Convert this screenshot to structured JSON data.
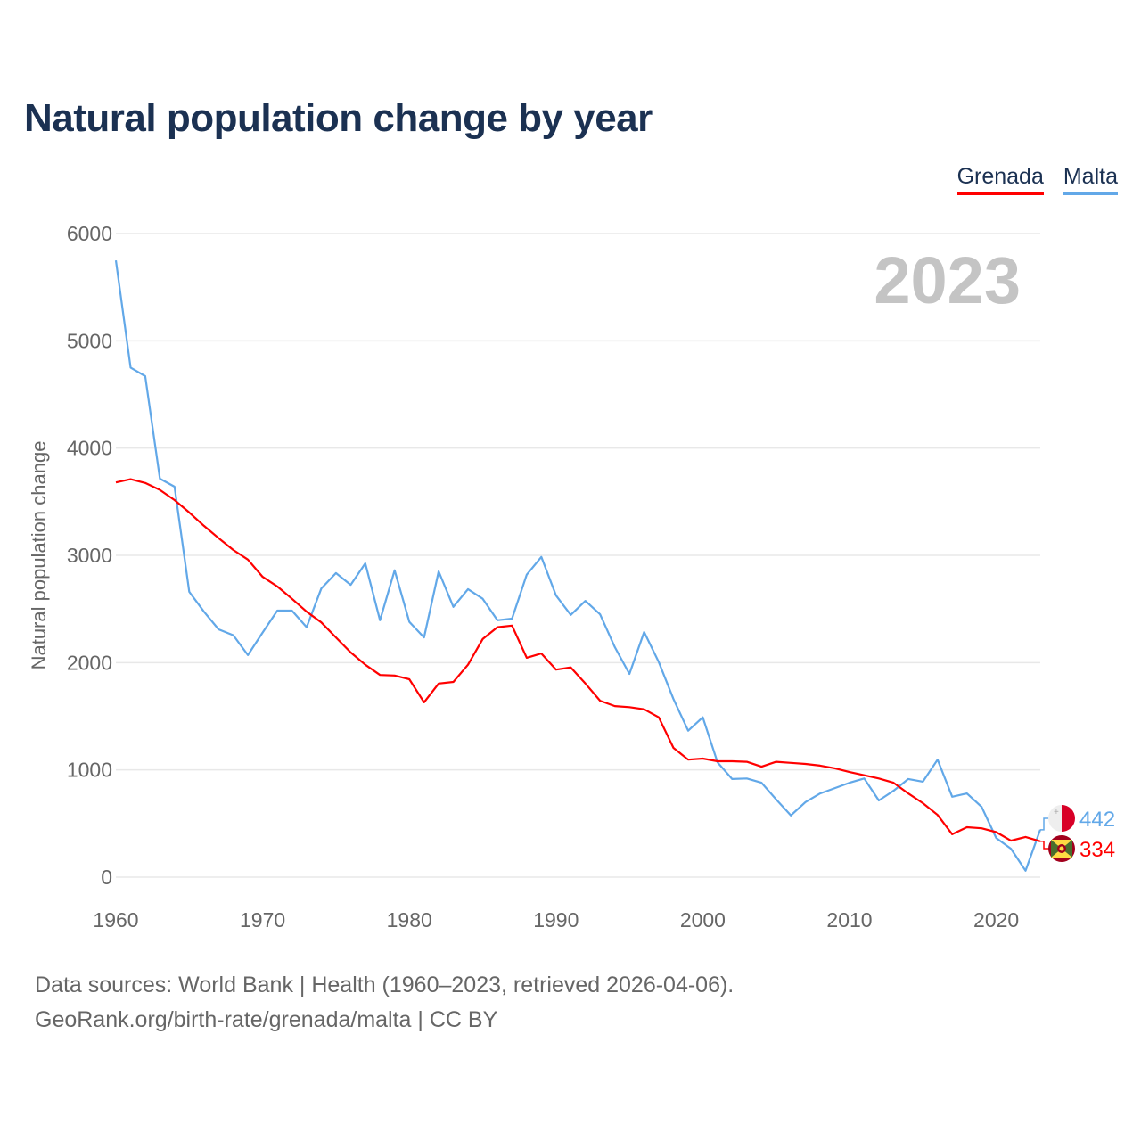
{
  "chart_data": {
    "type": "line",
    "title": "Natural population change by year",
    "xlabel": "",
    "ylabel": "Natural population change",
    "xlim": [
      1960,
      2023
    ],
    "ylim": [
      0,
      6000
    ],
    "yticks": [
      0,
      1000,
      2000,
      3000,
      4000,
      5000,
      6000
    ],
    "xticks": [
      1960,
      1970,
      1980,
      1990,
      2000,
      2010,
      2020
    ],
    "grid": true,
    "legend_position": "top-right",
    "current_year_label": "2023",
    "x": [
      1960,
      1961,
      1962,
      1963,
      1964,
      1965,
      1966,
      1967,
      1968,
      1969,
      1970,
      1971,
      1972,
      1973,
      1974,
      1975,
      1976,
      1977,
      1978,
      1979,
      1980,
      1981,
      1982,
      1983,
      1984,
      1985,
      1986,
      1987,
      1988,
      1989,
      1990,
      1991,
      1992,
      1993,
      1994,
      1995,
      1996,
      1997,
      1998,
      1999,
      2000,
      2001,
      2002,
      2003,
      2004,
      2005,
      2006,
      2007,
      2008,
      2009,
      2010,
      2011,
      2012,
      2013,
      2014,
      2015,
      2016,
      2017,
      2018,
      2019,
      2020,
      2021,
      2022,
      2023
    ],
    "series": [
      {
        "name": "Grenada",
        "color": "#ff0000",
        "end_label": "334",
        "values": [
          3680,
          3710,
          3675,
          3610,
          3515,
          3400,
          3275,
          3160,
          3050,
          2960,
          2800,
          2710,
          2595,
          2475,
          2375,
          2235,
          2095,
          1980,
          1885,
          1880,
          1845,
          1630,
          1805,
          1820,
          1980,
          2220,
          2330,
          2345,
          2045,
          2085,
          1935,
          1955,
          1805,
          1645,
          1595,
          1585,
          1565,
          1490,
          1205,
          1095,
          1105,
          1080,
          1080,
          1075,
          1030,
          1075,
          1065,
          1055,
          1040,
          1015,
          980,
          950,
          920,
          880,
          780,
          690,
          580,
          400,
          465,
          455,
          420,
          340,
          375,
          334
        ]
      },
      {
        "name": "Malta",
        "color": "#62a8e8",
        "end_label": "442",
        "values": [
          5750,
          4750,
          4670,
          3715,
          3640,
          2660,
          2475,
          2310,
          2255,
          2070,
          2280,
          2485,
          2485,
          2330,
          2690,
          2835,
          2725,
          2925,
          2395,
          2860,
          2380,
          2235,
          2850,
          2520,
          2685,
          2595,
          2395,
          2410,
          2820,
          2985,
          2625,
          2445,
          2575,
          2450,
          2145,
          1895,
          2285,
          2005,
          1660,
          1365,
          1490,
          1070,
          915,
          920,
          880,
          725,
          575,
          700,
          780,
          830,
          880,
          920,
          715,
          805,
          915,
          890,
          1095,
          750,
          780,
          655,
          365,
          265,
          60,
          442
        ]
      }
    ]
  },
  "footer": {
    "line1": "Data sources: World Bank | Health (1960–2023, retrieved 2026-04-06).",
    "line2": "GeoRank.org/birth-rate/grenada/malta | CC BY"
  }
}
